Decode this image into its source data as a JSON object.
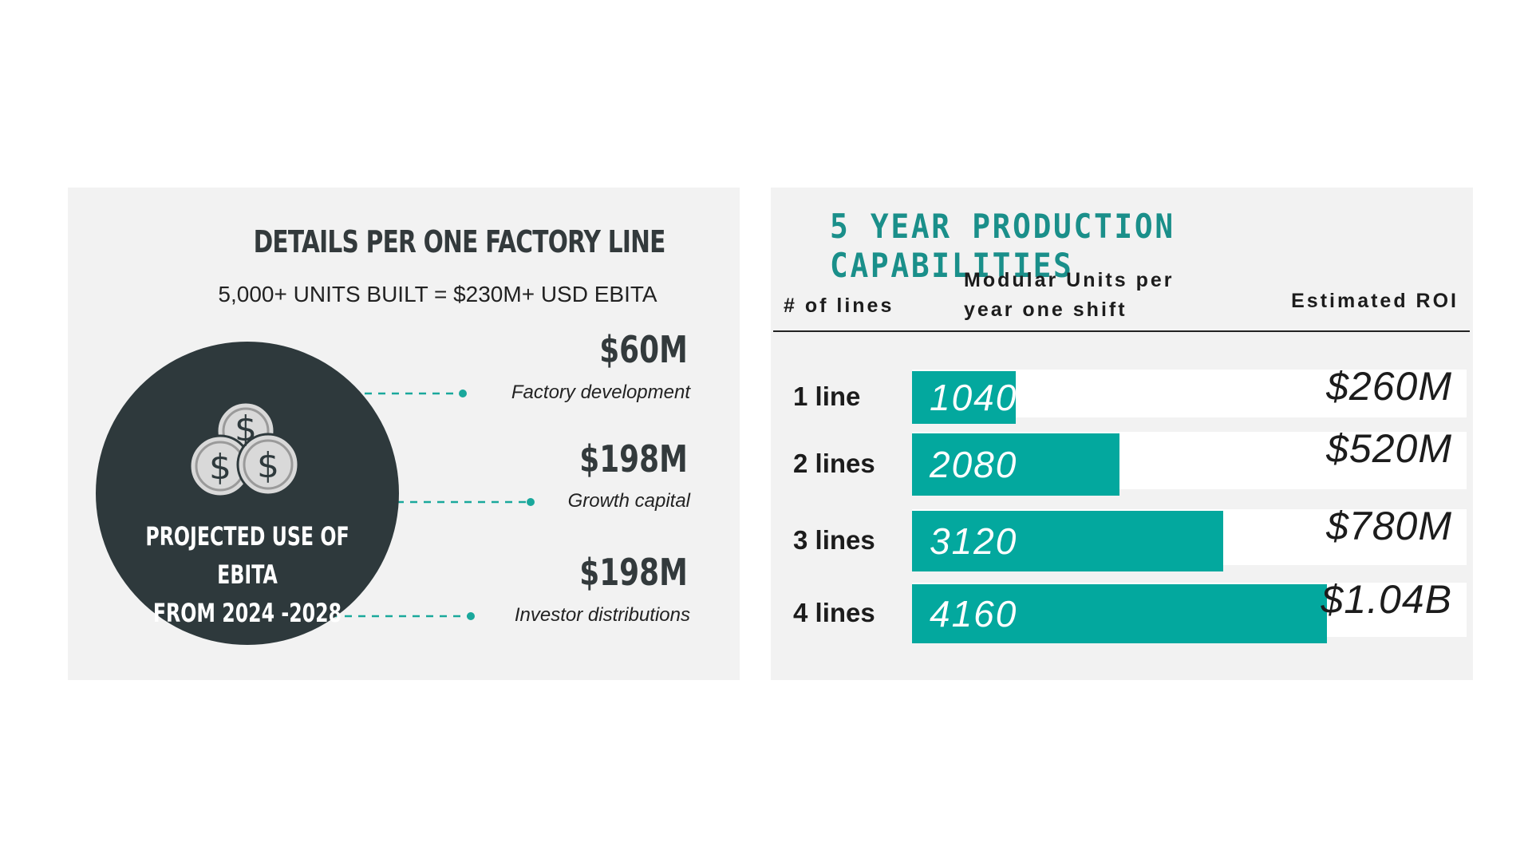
{
  "left": {
    "title": "DETAILS PER ONE FACTORY LINE",
    "subtitle": "5,000+ UNITS BUILT = $230M+ USD EBITA",
    "circle_line1": "PROJECTED  USE OF EBITA",
    "circle_line2": "FROM 2024 -2028",
    "coin_icon": "dollar-coins-icon",
    "items": [
      {
        "amount": "$60M",
        "label": "Factory development"
      },
      {
        "amount": "$198M",
        "label": "Growth capital"
      },
      {
        "amount": "$198M",
        "label": "Investor distributions"
      }
    ]
  },
  "right": {
    "title": "5 YEAR PRODUCTION CAPABILITIES",
    "col_lines": "# of lines",
    "col_units_1": "Modular Units per",
    "col_units_2": "year one shift",
    "col_roi": "Estimated ROI"
  },
  "chart_data": {
    "type": "bar",
    "title": "5 YEAR PRODUCTION CAPABILITIES",
    "categories": [
      "1 line",
      "2 lines",
      "3 lines",
      "4 lines"
    ],
    "series": [
      {
        "name": "Modular Units per year one shift",
        "values": [
          1040,
          2080,
          3120,
          4160
        ]
      }
    ],
    "roi_labels": [
      "$260M",
      "$520M",
      "$780M",
      "$1.04B"
    ],
    "bar_color": "#03a89e",
    "accent_color": "#1a8f8a"
  }
}
